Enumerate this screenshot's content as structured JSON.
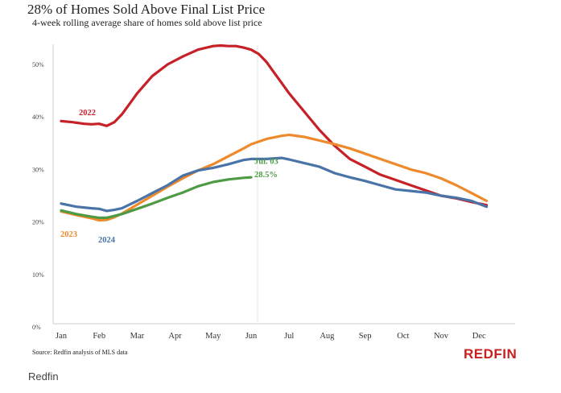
{
  "chart_data": {
    "type": "line",
    "title": "28% of Homes Sold Above Final List Price",
    "subtitle": "4-week rolling average share of homes sold above list price",
    "xlabel": "",
    "ylabel": "",
    "x_ticks": [
      "Jan",
      "Feb",
      "Mar",
      "Apr",
      "May",
      "Jun",
      "Jul",
      "Aug",
      "Sep",
      "Oct",
      "Nov",
      "Dec"
    ],
    "y_ticks": [
      "0%",
      "10%",
      "20%",
      "30%",
      "40%",
      "50%"
    ],
    "ylim": [
      0,
      55
    ],
    "grid": false,
    "series": [
      {
        "name": "2022",
        "color": "#c62127",
        "x": [
          0.0,
          0.3,
          0.6,
          0.8,
          1.0,
          1.2,
          1.4,
          1.6,
          1.8,
          2.0,
          2.4,
          2.8,
          3.2,
          3.6,
          4.0,
          4.2,
          4.4,
          4.6,
          4.8,
          5.0,
          5.2,
          5.4,
          5.6,
          5.8,
          6.0,
          6.4,
          6.8,
          7.2,
          7.6,
          8.0,
          8.4,
          8.8,
          9.2,
          9.6,
          10.0,
          10.4,
          10.8,
          11.2
        ],
        "y": [
          39.2,
          39.0,
          38.7,
          38.6,
          38.7,
          38.3,
          39.0,
          40.5,
          42.5,
          44.5,
          47.8,
          50.0,
          51.5,
          52.8,
          53.5,
          53.6,
          53.5,
          53.5,
          53.2,
          52.8,
          52.0,
          50.5,
          48.5,
          46.5,
          44.5,
          41.0,
          37.5,
          34.5,
          32.0,
          30.5,
          29.0,
          28.0,
          27.0,
          26.0,
          25.0,
          24.5,
          23.8,
          23.2
        ]
      },
      {
        "name": "2023",
        "color": "#ee8a2b",
        "x": [
          0.0,
          0.4,
          0.8,
          1.0,
          1.2,
          1.4,
          1.6,
          2.0,
          2.4,
          2.8,
          3.2,
          3.6,
          4.0,
          4.4,
          4.8,
          5.0,
          5.4,
          5.8,
          6.0,
          6.4,
          6.8,
          7.2,
          7.6,
          8.0,
          8.4,
          8.8,
          9.2,
          9.6,
          10.0,
          10.4,
          10.8,
          11.2
        ],
        "y": [
          22.0,
          21.3,
          20.7,
          20.3,
          20.4,
          20.9,
          21.6,
          23.3,
          25.0,
          26.7,
          28.3,
          29.8,
          31.0,
          32.5,
          34.0,
          34.8,
          35.8,
          36.4,
          36.6,
          36.2,
          35.5,
          34.8,
          34.0,
          33.0,
          32.0,
          31.0,
          30.0,
          29.3,
          28.3,
          27.0,
          25.5,
          24.0
        ]
      },
      {
        "name": "2024",
        "color": "#4a74a8",
        "x": [
          0.0,
          0.4,
          0.8,
          1.0,
          1.2,
          1.4,
          1.6,
          2.0,
          2.4,
          2.8,
          3.2,
          3.6,
          4.0,
          4.4,
          4.8,
          5.0,
          5.4,
          5.8,
          6.0,
          6.4,
          6.8,
          7.2,
          7.6,
          8.0,
          8.4,
          8.8,
          9.2,
          9.6,
          10.0,
          10.4,
          10.8,
          11.2
        ],
        "y": [
          23.5,
          22.9,
          22.6,
          22.5,
          22.1,
          22.3,
          22.6,
          24.0,
          25.5,
          27.0,
          28.8,
          29.8,
          30.3,
          31.0,
          31.8,
          32.0,
          32.0,
          32.2,
          31.9,
          31.2,
          30.5,
          29.3,
          28.5,
          27.8,
          27.0,
          26.2,
          25.9,
          25.6,
          25.0,
          24.6,
          24.0,
          22.9
        ]
      },
      {
        "name": "",
        "color": "#4f9a45",
        "x": [
          0.0,
          0.4,
          0.8,
          1.0,
          1.2,
          1.6,
          2.0,
          2.4,
          2.8,
          3.2,
          3.6,
          4.0,
          4.4,
          4.8,
          5.0
        ],
        "y": [
          22.2,
          21.5,
          21.0,
          20.8,
          20.8,
          21.5,
          22.5,
          23.5,
          24.6,
          25.6,
          26.8,
          27.6,
          28.1,
          28.4,
          28.5
        ]
      }
    ],
    "annotations": [
      {
        "text": "Jul. 03",
        "x": 5.0,
        "y": 31.5,
        "color": "#4f9a45"
      },
      {
        "text": "28.5%",
        "x": 5.0,
        "y": 29.0,
        "color": "#4f9a45"
      }
    ],
    "source": "Source: Redfin analysis of MLS data",
    "brand": "REDFIN"
  },
  "caption": "Redfin"
}
